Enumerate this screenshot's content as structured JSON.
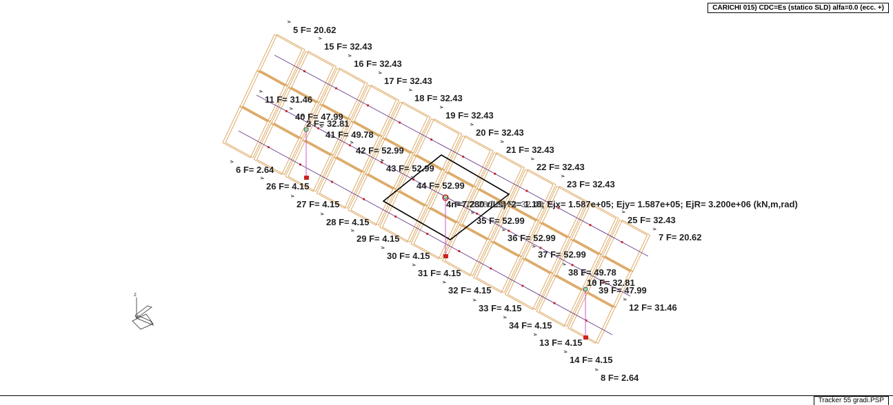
{
  "header": {
    "title": "CARICHI   015) CDC=Es (statico SLD) alfa=0.0 (ecc. +)"
  },
  "footer": {
    "file_name": "Tracker 55 gradi.PSP"
  },
  "overlay": {
    "text": "4n=7.280 r/Ls)^2= 1.18; Ejx=  1.587e+05; Ejy=  1.587e+05; EjR=  3.200e+06  (kN,m,rad)",
    "ghost_text": "4rF=72.280 23 F= 32.43"
  },
  "axes_icon": {
    "label": "z"
  },
  "colors": {
    "frame": "#d9a25a",
    "member": "#6a3a8c",
    "support": "#cc2222",
    "outline": "#000000",
    "leader": "#cc55cc"
  },
  "load_labels": [
    "5 F= 20.62",
    "15 F= 32.43",
    "16 F= 32.43",
    "17 F= 32.43",
    "18 F= 32.43",
    "19 F= 32.43",
    "20 F= 32.43",
    "21 F= 32.43",
    "22 F= 32.43",
    "23 F= 32.43",
    "25 F= 32.43",
    "7 F= 20.62",
    "11 F= 31.46",
    "40 F= 47.99",
    "2 F= 32.81",
    "41 F= 49.78",
    "42 F= 52.99",
    "43 F= 52.99",
    "44 F= 52.99",
    "35 F= 52.99",
    "36 F= 52.99",
    "37 F= 52.99",
    "38 F= 49.78",
    "10 F= 32.81",
    "39 F= 47.99",
    "12 F= 31.46",
    "6 F= 2.64",
    "26 F= 4.15",
    "27 F= 4.15",
    "28 F= 4.15",
    "29 F= 4.15",
    "30 F= 4.15",
    "31 F= 4.15",
    "32 F= 4.15",
    "33 F= 4.15",
    "34 F= 4.15",
    "13 F= 4.15",
    "14 F= 4.15",
    "8 F= 2.64"
  ]
}
